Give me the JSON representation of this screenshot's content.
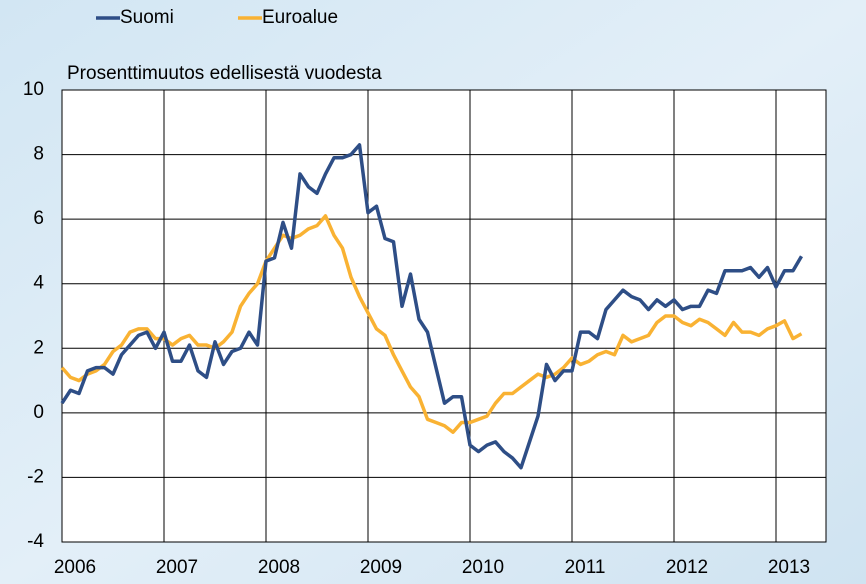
{
  "chart_data": {
    "type": "line",
    "subtitle": "Prosenttimuutos edellisestä vuodesta",
    "categories": [
      "2006",
      null,
      null,
      null,
      null,
      null,
      null,
      null,
      null,
      null,
      null,
      null,
      "2007",
      null,
      null,
      null,
      null,
      null,
      null,
      null,
      null,
      null,
      null,
      null,
      "2008",
      null,
      null,
      null,
      null,
      null,
      null,
      null,
      null,
      null,
      null,
      null,
      "2009",
      null,
      null,
      null,
      null,
      null,
      null,
      null,
      null,
      null,
      null,
      null,
      "2010",
      null,
      null,
      null,
      null,
      null,
      null,
      null,
      null,
      null,
      null,
      null,
      "2011",
      null,
      null,
      null,
      null,
      null,
      null,
      null,
      null,
      null,
      null,
      null,
      "2012",
      null,
      null,
      null,
      null,
      null,
      null,
      null,
      null,
      null,
      null,
      null,
      "2013",
      null,
      null,
      null
    ],
    "series": [
      {
        "name": "Suomi",
        "color": "#2e4e86",
        "values": [
          0.3,
          0.7,
          0.6,
          1.3,
          1.4,
          1.4,
          1.2,
          1.8,
          2.1,
          2.4,
          2.5,
          2.0,
          2.5,
          1.6,
          1.6,
          2.1,
          1.3,
          1.1,
          2.2,
          1.5,
          1.9,
          2.0,
          2.5,
          2.1,
          4.7,
          4.8,
          5.9,
          5.1,
          7.4,
          7.0,
          6.8,
          7.4,
          7.9,
          7.9,
          8.0,
          8.3,
          6.2,
          6.4,
          5.4,
          5.3,
          3.3,
          4.3,
          2.9,
          2.5,
          1.4,
          0.3,
          0.5,
          0.5,
          -1.0,
          -1.2,
          -1.0,
          -0.9,
          -1.2,
          -1.4,
          -1.7,
          -0.9,
          -0.1,
          1.5,
          1.0,
          1.3,
          1.3,
          2.5,
          2.5,
          2.3,
          3.2,
          3.5,
          3.8,
          3.6,
          3.5,
          3.2,
          3.5,
          3.3,
          3.5,
          3.2,
          3.3,
          3.3,
          3.8,
          3.7,
          4.4,
          4.4,
          4.4,
          4.5,
          4.2,
          4.5,
          3.9,
          4.4,
          4.4,
          4.85
        ]
      },
      {
        "name": "Euroalue",
        "color": "#f9b233",
        "values": [
          1.4,
          1.1,
          1.0,
          1.2,
          1.3,
          1.5,
          1.9,
          2.1,
          2.5,
          2.6,
          2.6,
          2.3,
          2.3,
          2.1,
          2.3,
          2.4,
          2.1,
          2.1,
          2.0,
          2.2,
          2.5,
          3.3,
          3.7,
          4.0,
          4.7,
          5.1,
          5.5,
          5.4,
          5.5,
          5.7,
          5.8,
          6.1,
          5.5,
          5.1,
          4.2,
          3.6,
          3.1,
          2.6,
          2.4,
          1.8,
          1.3,
          0.8,
          0.5,
          -0.2,
          -0.3,
          -0.4,
          -0.6,
          -0.3,
          -0.3,
          -0.2,
          -0.1,
          0.3,
          0.6,
          0.6,
          0.8,
          1.0,
          1.2,
          1.1,
          1.2,
          1.4,
          1.7,
          1.5,
          1.6,
          1.8,
          1.9,
          1.8,
          2.4,
          2.2,
          2.3,
          2.4,
          2.8,
          3.0,
          3.0,
          2.8,
          2.7,
          2.9,
          2.8,
          2.6,
          2.4,
          2.8,
          2.5,
          2.5,
          2.4,
          2.6,
          2.7,
          2.85,
          2.3,
          2.45
        ]
      }
    ],
    "ylim": [
      -4,
      10
    ],
    "yticks": [
      -4,
      -2,
      0,
      2,
      4,
      6,
      8,
      10
    ],
    "grid": true
  }
}
